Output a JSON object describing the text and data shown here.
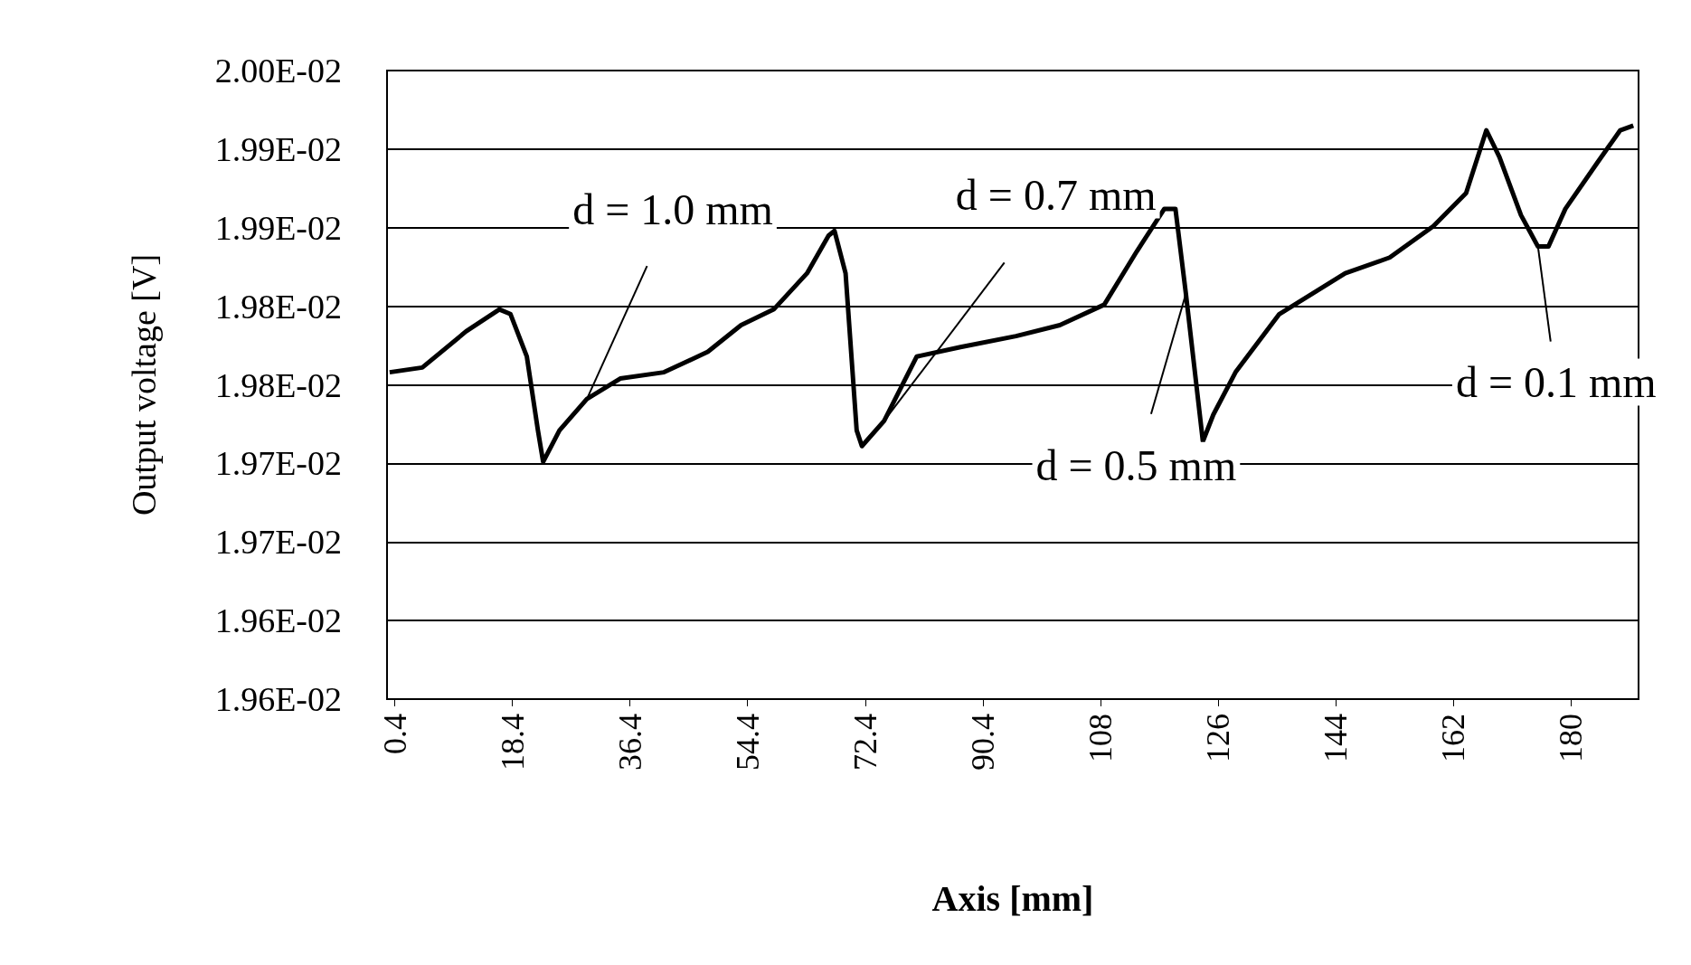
{
  "chart_data": {
    "type": "line",
    "xlabel": "Axis [mm]",
    "ylabel": "Output voltage [V]",
    "xlim": [
      -0.8,
      190.8
    ],
    "xticks": [
      0.4,
      18.4,
      36.4,
      54.4,
      72.4,
      90.4,
      {
        "value": 108.4,
        "label": "108"
      },
      {
        "value": 126.4,
        "label": "126"
      },
      {
        "value": 144.4,
        "label": "144"
      },
      {
        "value": 162.4,
        "label": "162"
      },
      {
        "value": 180.4,
        "label": "180"
      }
    ],
    "ylim": [
      0.0196,
      0.02
    ],
    "yticks": [
      {
        "value": 0.0196,
        "label": "1.96E-02"
      },
      {
        "value": 0.01965,
        "label": "1.96E-02"
      },
      {
        "value": 0.0197,
        "label": "1.97E-02"
      },
      {
        "value": 0.01975,
        "label": "1.97E-02"
      },
      {
        "value": 0.0198,
        "label": "1.98E-02"
      },
      {
        "value": 0.01985,
        "label": "1.98E-02"
      },
      {
        "value": 0.0199,
        "label": "1.99E-02"
      },
      {
        "value": 0.01995,
        "label": "1.99E-02"
      },
      {
        "value": 0.02,
        "label": "2.00E-02"
      }
    ],
    "grid": "y",
    "marker": "none",
    "line_style": "solid",
    "series": [
      {
        "color": "#000000",
        "x": [
          -0.4,
          4.6,
          11.3,
          16.4,
          18.1,
          20.6,
          22.3,
          23.1,
          25.6,
          29.8,
          34.9,
          41.6,
          48.3,
          53.4,
          58.4,
          63.5,
          66.8,
          67.7,
          69.4,
          71.1,
          71.9,
          75.3,
          80.3,
          87.0,
          95.5,
          102.2,
          109.0,
          114.0,
          118.2,
          119.9,
          121.5,
          124.1,
          125.7,
          129.1,
          135.8,
          145.9,
          152.7,
          159.4,
          164.4,
          167.5,
          169.5,
          172.8,
          175.4,
          177.0,
          179.6,
          184.6,
          188.0,
          190.0
        ],
        "values": [
          0.019808,
          0.019811,
          0.019834,
          0.019848,
          0.019845,
          0.019818,
          0.019771,
          0.019751,
          0.019771,
          0.019791,
          0.019804,
          0.019808,
          0.019821,
          0.019838,
          0.019848,
          0.019871,
          0.019895,
          0.019898,
          0.019871,
          0.019771,
          0.019761,
          0.019777,
          0.019818,
          0.019824,
          0.019831,
          0.019838,
          0.019851,
          0.019885,
          0.019912,
          0.019912,
          0.019858,
          0.019764,
          0.019781,
          0.019808,
          0.019845,
          0.019871,
          0.019881,
          0.019901,
          0.019922,
          0.019962,
          0.019945,
          0.019908,
          0.019888,
          0.019888,
          0.019912,
          0.019942,
          0.019962,
          0.019965
        ]
      }
    ],
    "annotations": [
      {
        "text": "d = 1.0 mm",
        "x": 29.8,
        "y": 0.019791
      },
      {
        "text": "d = 0.7 mm",
        "x": 75.3,
        "y": 0.019777
      },
      {
        "text": "d = 0.5 mm",
        "x": 121.5,
        "y": 0.019858
      },
      {
        "text": "d = 0.1 mm",
        "x": 175.4,
        "y": 0.019888
      }
    ]
  }
}
